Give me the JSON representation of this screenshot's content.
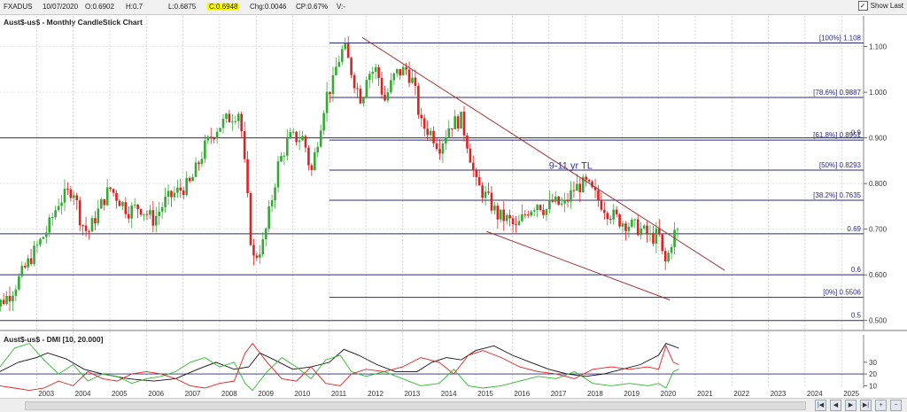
{
  "toolbar": {
    "symbol": "FXADUS",
    "date": "10/07/2020",
    "open": "O:0.6902",
    "high": "H:0.7",
    "low": "L:0.6875",
    "close": "C:0.6948",
    "change": "Chg:0.0046",
    "change_pct": "CP:0.67%",
    "volume": "V:-",
    "show_last_label": "Show Last",
    "show_last_checked": true
  },
  "scroll_buttons": [
    "first-icon",
    "prev-icon",
    "next-icon",
    "last-icon",
    "zoom-in-icon",
    "zoom-out-icon"
  ],
  "chart_data": {
    "type": "candlestick",
    "title": "Aust$-us$ - Monthly CandleStick Chart",
    "x_tick_labels": [
      "2003",
      "2004",
      "2005",
      "2006",
      "2007",
      "2008",
      "2009",
      "2010",
      "2011",
      "2012",
      "2013",
      "2014",
      "2015",
      "2016",
      "2017",
      "2018",
      "2019",
      "2020",
      "2021",
      "2022",
      "2023",
      "2024",
      "2025"
    ],
    "xlim": [
      2002.0,
      2025.6
    ],
    "ylim": [
      0.48,
      1.14
    ],
    "y_tick_labels": [
      "1.100",
      "1.000",
      "0.900",
      "0.800",
      "0.700",
      "0.600",
      "0.500"
    ],
    "y_ticks": [
      1.1,
      1.0,
      0.9,
      0.8,
      0.7,
      0.6,
      0.5
    ],
    "colors": {
      "up": "#33aa33",
      "down": "#dd2222",
      "hline": "#2a2a7a",
      "trendline": "#9e3636",
      "annotation": "#333399"
    },
    "anchors": [
      [
        2001.6,
        0.51
      ],
      [
        2002.3,
        0.56
      ],
      [
        2003.0,
        0.66
      ],
      [
        2003.3,
        0.7
      ],
      [
        2003.6,
        0.76
      ],
      [
        2004.0,
        0.79
      ],
      [
        2004.2,
        0.72
      ],
      [
        2004.4,
        0.69
      ],
      [
        2004.8,
        0.76
      ],
      [
        2005.0,
        0.79
      ],
      [
        2005.5,
        0.74
      ],
      [
        2005.8,
        0.75
      ],
      [
        2006.2,
        0.72
      ],
      [
        2006.5,
        0.76
      ],
      [
        2006.8,
        0.78
      ],
      [
        2007.2,
        0.8
      ],
      [
        2007.6,
        0.88
      ],
      [
        2007.9,
        0.92
      ],
      [
        2008.2,
        0.94
      ],
      [
        2008.55,
        0.96
      ],
      [
        2008.75,
        0.78
      ],
      [
        2008.9,
        0.63
      ],
      [
        2009.2,
        0.67
      ],
      [
        2009.6,
        0.84
      ],
      [
        2009.9,
        0.9
      ],
      [
        2010.3,
        0.9
      ],
      [
        2010.5,
        0.82
      ],
      [
        2010.9,
        0.99
      ],
      [
        2011.1,
        1.02
      ],
      [
        2011.2,
        1.06
      ],
      [
        2011.4,
        1.1
      ],
      [
        2011.7,
        1.02
      ],
      [
        2011.9,
        0.98
      ],
      [
        2012.0,
        1.04
      ],
      [
        2012.3,
        1.05
      ],
      [
        2012.5,
        0.98
      ],
      [
        2012.8,
        1.04
      ],
      [
        2013.1,
        1.05
      ],
      [
        2013.3,
        1.02
      ],
      [
        2013.5,
        0.93
      ],
      [
        2013.8,
        0.91
      ],
      [
        2014.0,
        0.88
      ],
      [
        2014.3,
        0.93
      ],
      [
        2014.6,
        0.94
      ],
      [
        2014.8,
        0.88
      ],
      [
        2015.0,
        0.8
      ],
      [
        2015.3,
        0.77
      ],
      [
        2015.6,
        0.73
      ],
      [
        2015.9,
        0.72
      ],
      [
        2016.1,
        0.7
      ],
      [
        2016.4,
        0.74
      ],
      [
        2016.7,
        0.76
      ],
      [
        2016.9,
        0.74
      ],
      [
        2017.1,
        0.76
      ],
      [
        2017.4,
        0.75
      ],
      [
        2017.7,
        0.79
      ],
      [
        2018.0,
        0.8
      ],
      [
        2018.3,
        0.77
      ],
      [
        2018.6,
        0.74
      ],
      [
        2018.9,
        0.72
      ],
      [
        2019.2,
        0.71
      ],
      [
        2019.5,
        0.7
      ],
      [
        2019.8,
        0.68
      ],
      [
        2020.0,
        0.69
      ],
      [
        2020.15,
        0.62
      ],
      [
        2020.25,
        0.64
      ],
      [
        2020.4,
        0.69
      ],
      [
        2020.55,
        0.695
      ]
    ],
    "hlines": [
      {
        "label": "[100%] 1.108",
        "value": 1.108,
        "start_year": 2011.0
      },
      {
        "label": "[78.6%] 0.9887",
        "value": 0.9887,
        "start_year": 2011.0
      },
      {
        "label": "[61.8%] 0.8951",
        "value": 0.8951,
        "start_year": 2011.0
      },
      {
        "label": "[50%] 0.8293",
        "value": 0.8293,
        "start_year": 2011.0
      },
      {
        "label": "[38.2%] 0.7635",
        "value": 0.7635,
        "start_year": 2011.0
      },
      {
        "label": "[0%] 0.5506",
        "value": 0.5506,
        "start_year": 2011.0
      },
      {
        "label": "0.9",
        "value": 0.9,
        "start_year": 2002.0
      },
      {
        "label": "0.69",
        "value": 0.69,
        "start_year": 2002.0
      },
      {
        "label": "0.6",
        "value": 0.6,
        "start_year": 2002.0
      },
      {
        "label": "0.5",
        "value": 0.5,
        "start_year": 2002.0
      }
    ],
    "trendlines": [
      {
        "from": [
          2011.9,
          1.12
        ],
        "to": [
          2021.8,
          0.61
        ]
      },
      {
        "from": [
          2015.3,
          0.695
        ],
        "to": [
          2020.3,
          0.545
        ]
      }
    ],
    "annotation": {
      "text": "9-11 yr TL",
      "x": 2017.0,
      "y": 0.832
    },
    "dmi": {
      "title": "Aust$-us$ - DMI [10, 20.000]",
      "ylim": [
        8,
        48
      ],
      "y_tick_labels": [
        "30",
        "20",
        "10"
      ],
      "y_ticks": [
        30,
        20,
        10
      ],
      "threshold": 20,
      "series": [
        {
          "color": "#111111",
          "points": [
            [
              2002.0,
              22
            ],
            [
              2002.5,
              30
            ],
            [
              2003.0,
              34
            ],
            [
              2003.3,
              38
            ],
            [
              2003.8,
              33
            ],
            [
              2004.3,
              24
            ],
            [
              2004.8,
              20
            ],
            [
              2005.5,
              16
            ],
            [
              2006.2,
              14
            ],
            [
              2006.8,
              16
            ],
            [
              2007.4,
              24
            ],
            [
              2007.9,
              30
            ],
            [
              2008.4,
              24
            ],
            [
              2008.8,
              26
            ],
            [
              2009.1,
              38
            ],
            [
              2009.5,
              32
            ],
            [
              2010.0,
              24
            ],
            [
              2010.5,
              26
            ],
            [
              2011.0,
              30
            ],
            [
              2011.4,
              41
            ],
            [
              2011.8,
              36
            ],
            [
              2012.3,
              28
            ],
            [
              2012.8,
              22
            ],
            [
              2013.4,
              22
            ],
            [
              2013.8,
              30
            ],
            [
              2014.2,
              34
            ],
            [
              2014.6,
              32
            ],
            [
              2015.0,
              40
            ],
            [
              2015.5,
              44
            ],
            [
              2016.0,
              36
            ],
            [
              2016.5,
              30
            ],
            [
              2017.0,
              24
            ],
            [
              2017.5,
              20
            ],
            [
              2018.0,
              18
            ],
            [
              2018.5,
              20
            ],
            [
              2019.0,
              24
            ],
            [
              2019.5,
              28
            ],
            [
              2020.0,
              36
            ],
            [
              2020.2,
              46
            ],
            [
              2020.55,
              42
            ]
          ]
        },
        {
          "color": "#2db82d",
          "points": [
            [
              2002.0,
              26
            ],
            [
              2002.4,
              42
            ],
            [
              2002.8,
              46
            ],
            [
              2003.2,
              32
            ],
            [
              2003.6,
              20
            ],
            [
              2004.0,
              28
            ],
            [
              2004.4,
              14
            ],
            [
              2004.8,
              20
            ],
            [
              2005.2,
              18
            ],
            [
              2005.6,
              12
            ],
            [
              2006.0,
              16
            ],
            [
              2006.4,
              18
            ],
            [
              2006.8,
              22
            ],
            [
              2007.2,
              30
            ],
            [
              2007.6,
              34
            ],
            [
              2008.0,
              26
            ],
            [
              2008.4,
              30
            ],
            [
              2008.7,
              12
            ],
            [
              2008.9,
              6
            ],
            [
              2009.3,
              22
            ],
            [
              2009.7,
              34
            ],
            [
              2010.1,
              26
            ],
            [
              2010.5,
              16
            ],
            [
              2010.9,
              32
            ],
            [
              2011.3,
              36
            ],
            [
              2011.6,
              22
            ],
            [
              2012.0,
              18
            ],
            [
              2012.5,
              22
            ],
            [
              2013.0,
              16
            ],
            [
              2013.5,
              10
            ],
            [
              2014.0,
              12
            ],
            [
              2014.4,
              24
            ],
            [
              2014.8,
              10
            ],
            [
              2015.2,
              8
            ],
            [
              2015.7,
              10
            ],
            [
              2016.2,
              14
            ],
            [
              2016.7,
              18
            ],
            [
              2017.2,
              16
            ],
            [
              2017.7,
              22
            ],
            [
              2018.2,
              12
            ],
            [
              2018.7,
              10
            ],
            [
              2019.2,
              12
            ],
            [
              2019.7,
              10
            ],
            [
              2020.0,
              12
            ],
            [
              2020.2,
              8
            ],
            [
              2020.4,
              22
            ],
            [
              2020.55,
              24
            ]
          ]
        },
        {
          "color": "#e02020",
          "points": [
            [
              2002.0,
              10
            ],
            [
              2002.4,
              8
            ],
            [
              2002.8,
              6
            ],
            [
              2003.2,
              8
            ],
            [
              2003.6,
              14
            ],
            [
              2004.0,
              10
            ],
            [
              2004.4,
              22
            ],
            [
              2004.8,
              16
            ],
            [
              2005.2,
              14
            ],
            [
              2005.6,
              20
            ],
            [
              2006.0,
              22
            ],
            [
              2006.4,
              20
            ],
            [
              2006.8,
              16
            ],
            [
              2007.2,
              10
            ],
            [
              2007.6,
              8
            ],
            [
              2008.0,
              12
            ],
            [
              2008.4,
              14
            ],
            [
              2008.7,
              38
            ],
            [
              2008.9,
              46
            ],
            [
              2009.3,
              30
            ],
            [
              2009.7,
              16
            ],
            [
              2010.1,
              14
            ],
            [
              2010.5,
              26
            ],
            [
              2010.9,
              12
            ],
            [
              2011.3,
              10
            ],
            [
              2011.6,
              20
            ],
            [
              2012.0,
              24
            ],
            [
              2012.5,
              22
            ],
            [
              2013.0,
              26
            ],
            [
              2013.5,
              34
            ],
            [
              2014.0,
              30
            ],
            [
              2014.4,
              20
            ],
            [
              2014.8,
              36
            ],
            [
              2015.2,
              40
            ],
            [
              2015.7,
              34
            ],
            [
              2016.2,
              26
            ],
            [
              2016.7,
              22
            ],
            [
              2017.2,
              20
            ],
            [
              2017.7,
              16
            ],
            [
              2018.2,
              24
            ],
            [
              2018.7,
              26
            ],
            [
              2019.2,
              24
            ],
            [
              2019.7,
              26
            ],
            [
              2020.0,
              24
            ],
            [
              2020.2,
              44
            ],
            [
              2020.4,
              30
            ],
            [
              2020.55,
              28
            ]
          ]
        }
      ]
    }
  }
}
